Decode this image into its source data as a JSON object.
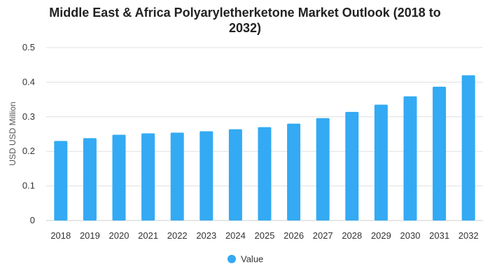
{
  "chart_data": {
    "type": "bar",
    "title_lines": [
      "Middle East & Africa Polyaryletherketone Market Outlook (2018 to",
      "2032)"
    ],
    "xlabel": "",
    "ylabel": "USD USD Million",
    "categories": [
      "2018",
      "2019",
      "2020",
      "2021",
      "2022",
      "2023",
      "2024",
      "2025",
      "2026",
      "2027",
      "2028",
      "2029",
      "2030",
      "2031",
      "2032"
    ],
    "series": [
      {
        "name": "Value",
        "values": [
          0.23,
          0.238,
          0.248,
          0.252,
          0.254,
          0.258,
          0.264,
          0.27,
          0.28,
          0.296,
          0.314,
          0.335,
          0.359,
          0.387,
          0.42
        ]
      }
    ],
    "ylim": [
      0,
      0.5
    ],
    "yticks": [
      "0",
      "0.1",
      "0.2",
      "0.3",
      "0.4",
      "0.5"
    ],
    "grid": true,
    "legend_position": "bottom-center",
    "colors": {
      "bar": "#33aaf3",
      "grid": "#e0e0e0",
      "axis_text": "#333333"
    }
  }
}
